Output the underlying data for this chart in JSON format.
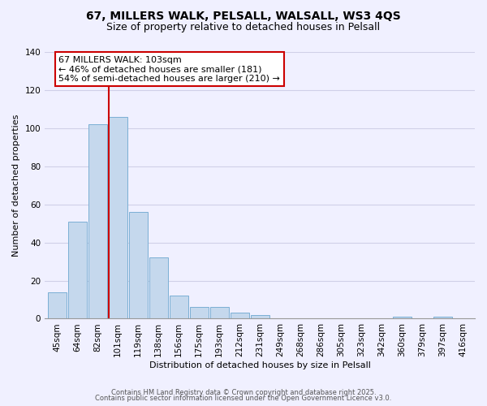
{
  "title": "67, MILLERS WALK, PELSALL, WALSALL, WS3 4QS",
  "subtitle": "Size of property relative to detached houses in Pelsall",
  "xlabel": "Distribution of detached houses by size in Pelsall",
  "ylabel": "Number of detached properties",
  "categories": [
    "45sqm",
    "64sqm",
    "82sqm",
    "101sqm",
    "119sqm",
    "138sqm",
    "156sqm",
    "175sqm",
    "193sqm",
    "212sqm",
    "231sqm",
    "249sqm",
    "268sqm",
    "286sqm",
    "305sqm",
    "323sqm",
    "342sqm",
    "360sqm",
    "379sqm",
    "397sqm",
    "416sqm"
  ],
  "values": [
    14,
    51,
    102,
    106,
    56,
    32,
    12,
    6,
    6,
    3,
    2,
    0,
    0,
    0,
    0,
    0,
    0,
    1,
    0,
    1,
    0
  ],
  "bar_color": "#c5d8ed",
  "bar_edge_color": "#7bafd4",
  "vline_index": 3,
  "vline_color": "#cc0000",
  "annotation_line1": "67 MILLERS WALK: 103sqm",
  "annotation_line2": "← 46% of detached houses are smaller (181)",
  "annotation_line3": "54% of semi-detached houses are larger (210) →",
  "annotation_box_color": "#ffffff",
  "annotation_box_edgecolor": "#cc0000",
  "ylim": [
    0,
    140
  ],
  "yticks": [
    0,
    20,
    40,
    60,
    80,
    100,
    120,
    140
  ],
  "footer_line1": "Contains HM Land Registry data © Crown copyright and database right 2025.",
  "footer_line2": "Contains public sector information licensed under the Open Government Licence v3.0.",
  "background_color": "#f0f0ff",
  "grid_color": "#d0d0e8",
  "title_fontsize": 10,
  "subtitle_fontsize": 9,
  "axis_label_fontsize": 8,
  "tick_fontsize": 7.5,
  "annotation_fontsize": 8,
  "footer_fontsize": 6
}
